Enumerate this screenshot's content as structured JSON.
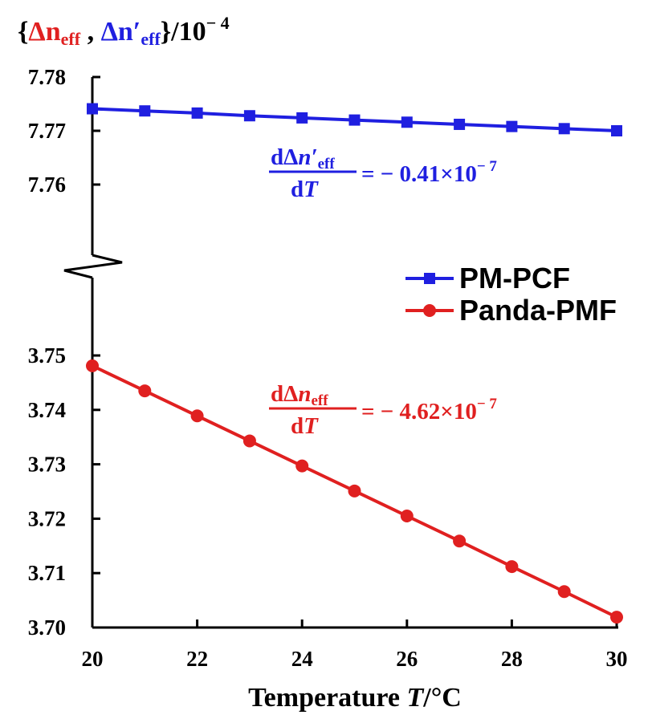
{
  "chart_data": {
    "type": "line",
    "title": {
      "open": "{",
      "part1": "Δn",
      "part1_sub": "eff",
      "sep": " , ",
      "part2": "Δn′",
      "part2_sub": "eff",
      "close": "}/10",
      "exp": "− 4"
    },
    "xlabel": {
      "main": "Temperature ",
      "var": "T",
      "unit": "/°C"
    },
    "x": [
      20,
      21,
      22,
      23,
      24,
      25,
      26,
      27,
      28,
      29,
      30
    ],
    "xticks": [
      "20",
      "22",
      "24",
      "26",
      "28",
      "30"
    ],
    "xlim": [
      20,
      30
    ],
    "axis_break": true,
    "upper_panel": {
      "ylim": [
        7.75,
        7.78
      ],
      "yticks": [
        "7.78",
        "7.77",
        "7.76"
      ]
    },
    "lower_panel": {
      "ylim": [
        3.7,
        3.75
      ],
      "yticks": [
        "3.75",
        "3.74",
        "3.73",
        "3.72",
        "3.71",
        "3.70"
      ]
    },
    "series": [
      {
        "name": "PM-PCF",
        "panel": "upper",
        "color": "#1f1fe0",
        "marker": "square",
        "values": [
          7.7741,
          7.7737,
          7.7733,
          7.7728,
          7.7724,
          7.772,
          7.7716,
          7.7712,
          7.7708,
          7.7704,
          7.77
        ]
      },
      {
        "name": "Panda-PMF",
        "panel": "lower",
        "color": "#e02020",
        "marker": "circle",
        "values": [
          3.7481,
          3.7435,
          3.7389,
          3.7343,
          3.7297,
          3.7251,
          3.7205,
          3.7159,
          3.7112,
          3.7066,
          3.7019
        ]
      }
    ],
    "legend": {
      "position": "right-middle"
    },
    "annotations": [
      {
        "color": "#1f1fe0",
        "num_prefix": "dΔ",
        "num_var": "n′",
        "num_sub": "eff",
        "den_prefix": "d",
        "den_var": "T",
        "rhs": "= − 0.41×10",
        "rhs_exp": "− 7"
      },
      {
        "color": "#e02020",
        "num_prefix": "dΔ",
        "num_var": "n",
        "num_sub": "eff",
        "den_prefix": "d",
        "den_var": "T",
        "rhs": "= − 4.62×10",
        "rhs_exp": "− 7"
      }
    ]
  }
}
